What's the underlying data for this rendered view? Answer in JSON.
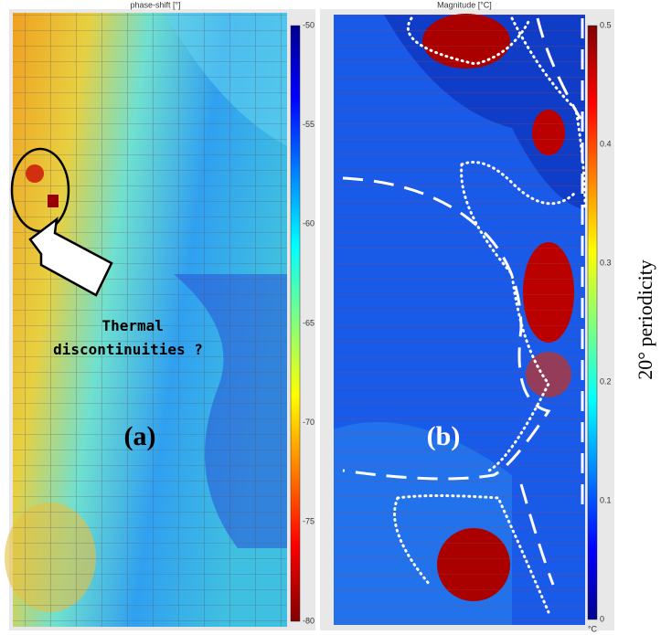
{
  "panel_a": {
    "title": "phase-shift [°]",
    "label": "(a)",
    "annotation": "Thermal discontinuities ?",
    "colorbar_ticks": [
      -50,
      -55,
      -60,
      -65,
      -70,
      -75,
      -80
    ]
  },
  "panel_b": {
    "title": "Magnitude [°C]",
    "label": "(b)",
    "colorbar_ticks": [
      0.5,
      0.4,
      0.3,
      0.2,
      0.1,
      0
    ],
    "colorbar_unit": "°C"
  },
  "side_label": "20° periodicity"
}
